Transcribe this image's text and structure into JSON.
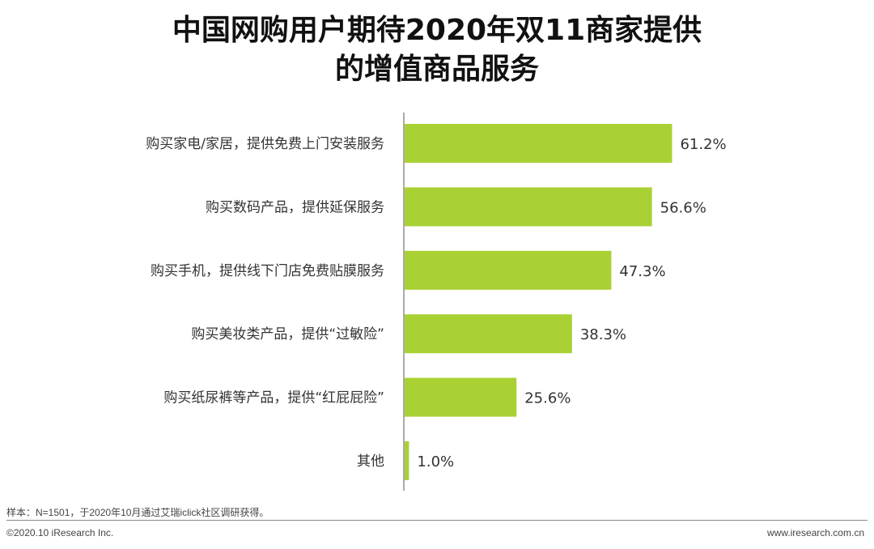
{
  "chart_data": {
    "type": "bar",
    "orientation": "horizontal",
    "title": "中国网购用户期待2020年双11商家提供的增值商品服务",
    "title_lines": [
      "中国网购用户期待2020年双11商家提供",
      "的增值商品服务"
    ],
    "categories": [
      "购买家电/家居，提供免费上门安装服务",
      "购买数码产品，提供延保服务",
      "购买手机，提供线下门店免费贴膜服务",
      "购买美妆类产品，提供“过敏险”",
      "购买纸尿裤等产品，提供“红屁屁险”",
      "其他"
    ],
    "values": [
      61.2,
      56.6,
      47.3,
      38.3,
      25.6,
      1.0
    ],
    "value_labels": [
      "61.2%",
      "56.6%",
      "47.3%",
      "38.3%",
      "25.6%",
      "1.0%"
    ],
    "unit": "%",
    "xlim": [
      0,
      100
    ],
    "grid": false,
    "bar_color": "#a9d134"
  },
  "footer": {
    "note": "样本：N=1501，于2020年10月通过艾瑞iclick社区调研获得。",
    "copyright": "©2020.10 iResearch Inc.",
    "website": "www.iresearch.com.cn"
  }
}
